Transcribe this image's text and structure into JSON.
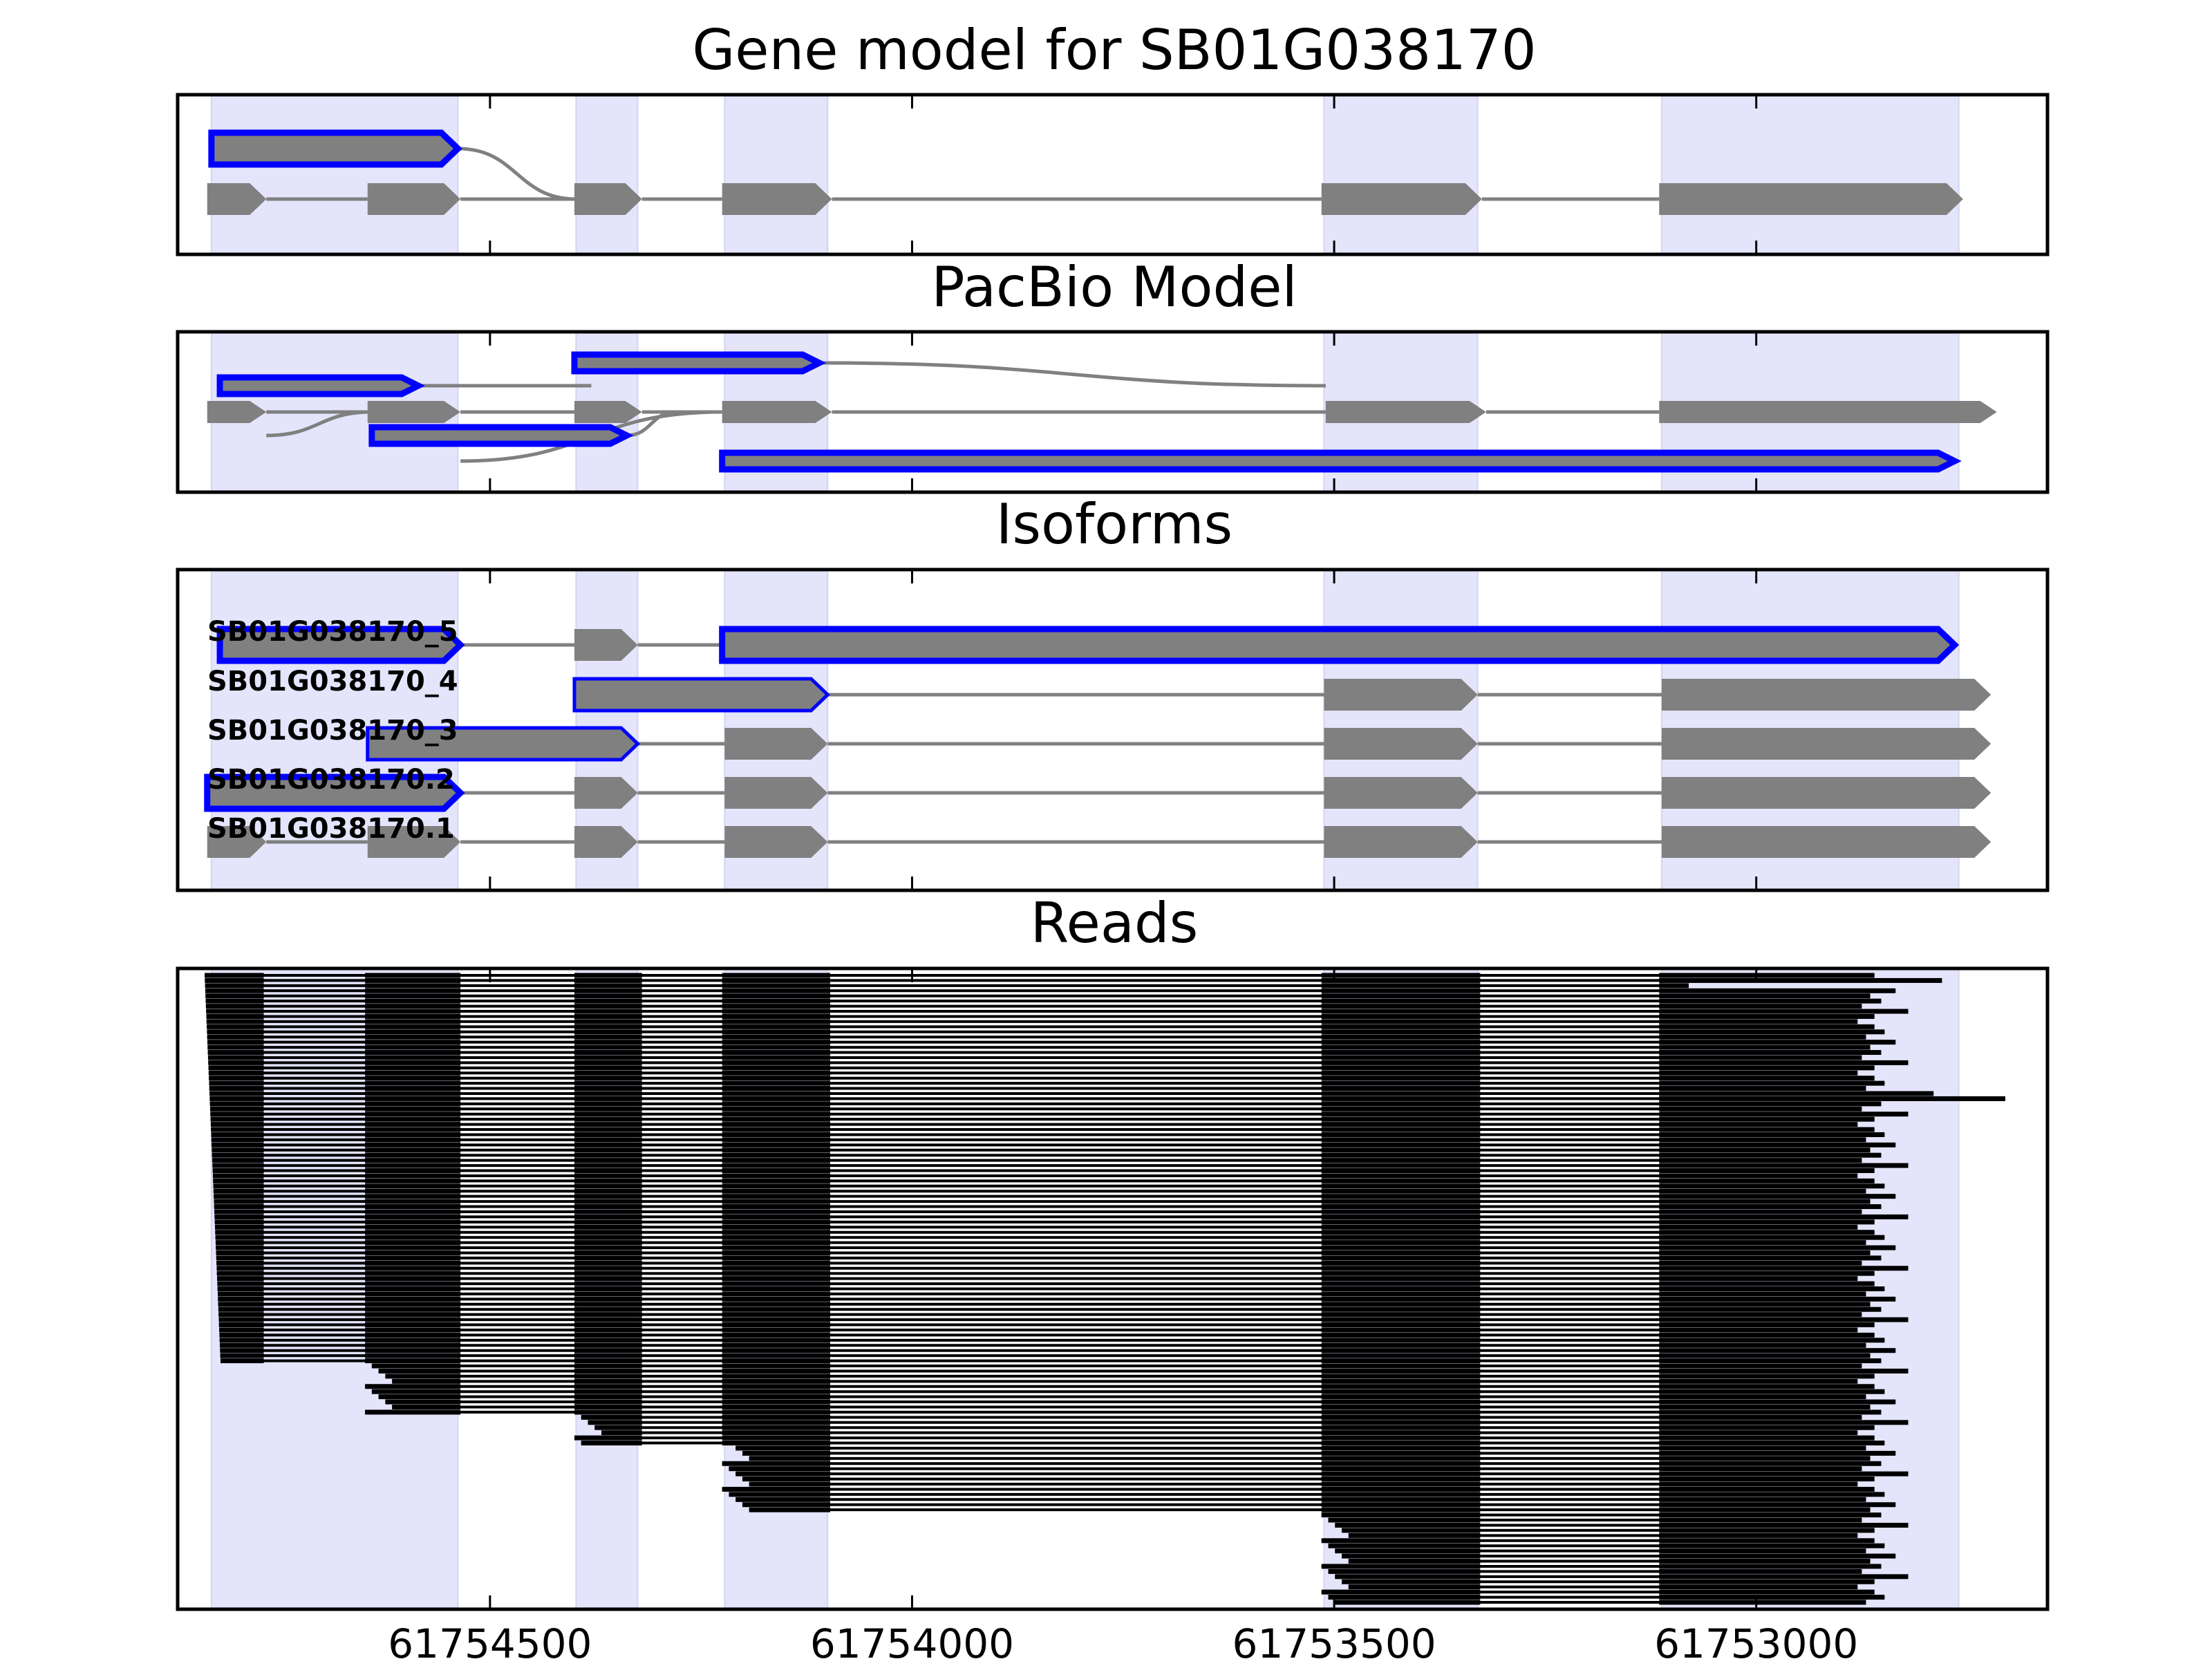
{
  "chart_data": {
    "type": "gene-track",
    "title": "Gene model for SB01G038170",
    "x_direction": "reversed",
    "xlim": [
      61754870,
      61752655
    ],
    "x_ticks": [
      61754500,
      61754000,
      61753500,
      61753000
    ],
    "x_tick_labels": [
      "61754500",
      "61754000",
      "61753500",
      "61753000"
    ],
    "colors": {
      "exon_fill": "#808080",
      "highlight_outline": "#0000ff",
      "intron_line": "#808080",
      "shade": "#e4e4fb",
      "read": "#000000"
    },
    "shaded_regions": [
      [
        61754830,
        61754538
      ],
      [
        61754398,
        61754325
      ],
      [
        61754222,
        61754100
      ],
      [
        61753512,
        61753330
      ],
      [
        61753112,
        61752760
      ]
    ],
    "panels": [
      {
        "title": "Gene model for SB01G038170",
        "lanes": [
          {
            "highlight": true,
            "exons": [
              [
                61754830,
                61754538
              ]
            ],
            "junctions": [
              [
                61754538,
                61754398,
                1
              ]
            ]
          },
          {
            "highlight": false,
            "exons": [
              [
                61754835,
                61754765
              ],
              [
                61754645,
                61754535
              ],
              [
                61754400,
                61754320
              ],
              [
                61754225,
                61754095
              ],
              [
                61753515,
                61753325
              ],
              [
                61753115,
                61752755
              ]
            ]
          }
        ]
      },
      {
        "title": "PacBio Model",
        "lanes": [
          {
            "highlight": true,
            "exons": [
              [
                61754400,
                61754110
              ]
            ],
            "junctions": [
              [
                61754110,
                61753510,
                1
              ]
            ]
          },
          {
            "highlight": true,
            "exons": [
              [
                61754820,
                61754585
              ]
            ],
            "junctions": [
              [
                61754585,
                61754380,
                1
              ]
            ]
          },
          {
            "highlight": false,
            "exons": [
              [
                61754835,
                61754765
              ],
              [
                61754645,
                61754535
              ],
              [
                61754400,
                61754320
              ],
              [
                61754225,
                61754095
              ],
              [
                61753510,
                61753320
              ],
              [
                61753115,
                61752715
              ]
            ]
          },
          {
            "highlight": true,
            "exons": [
              [
                61754640,
                61754338
              ]
            ],
            "junctions": [
              [
                61754765,
                61754640,
                2
              ],
              [
                61754338,
                61754280,
                2
              ]
            ]
          },
          {
            "highlight": true,
            "exons": [
              [
                61754225,
                61752765
              ]
            ],
            "junctions": [
              [
                61754535,
                61754225,
                2
              ]
            ]
          }
        ]
      },
      {
        "title": "Isoforms",
        "isoforms": [
          {
            "name": "SB01G038170_5",
            "exons": [
              [
                61754820,
                61754535,
                true
              ],
              [
                61754400,
                61754325,
                false
              ],
              [
                61754225,
                61752765,
                true
              ]
            ]
          },
          {
            "name": "SB01G038170_4",
            "exons": [
              [
                61754400,
                61754100,
                true
              ],
              [
                61753512,
                61753330,
                false
              ],
              [
                61753112,
                61752722,
                false
              ]
            ]
          },
          {
            "name": "SB01G038170_3",
            "exons": [
              [
                61754645,
                61754325,
                true
              ],
              [
                61754222,
                61754100,
                false
              ],
              [
                61753512,
                61753330,
                false
              ],
              [
                61753112,
                61752722,
                false
              ]
            ]
          },
          {
            "name": "SB01G038170.2",
            "exons": [
              [
                61754835,
                61754535,
                true
              ],
              [
                61754400,
                61754325,
                false
              ],
              [
                61754222,
                61754100,
                false
              ],
              [
                61753512,
                61753330,
                false
              ],
              [
                61753112,
                61752722,
                false
              ]
            ]
          },
          {
            "name": "SB01G038170.1",
            "exons": [
              [
                61754835,
                61754765,
                false
              ],
              [
                61754645,
                61754535,
                false
              ],
              [
                61754400,
                61754325,
                false
              ],
              [
                61754222,
                61754100,
                false
              ],
              [
                61753512,
                61753330,
                false
              ],
              [
                61753112,
                61752722,
                false
              ]
            ]
          }
        ]
      },
      {
        "title": "Reads",
        "read_count": 123,
        "exon_blocks": [
          [
            61754838,
            61754768
          ],
          [
            61754648,
            61754535
          ],
          [
            61754400,
            61754320
          ],
          [
            61754225,
            61754097
          ],
          [
            61753515,
            61753327
          ],
          [
            61753115,
            61752800
          ]
        ]
      }
    ]
  }
}
